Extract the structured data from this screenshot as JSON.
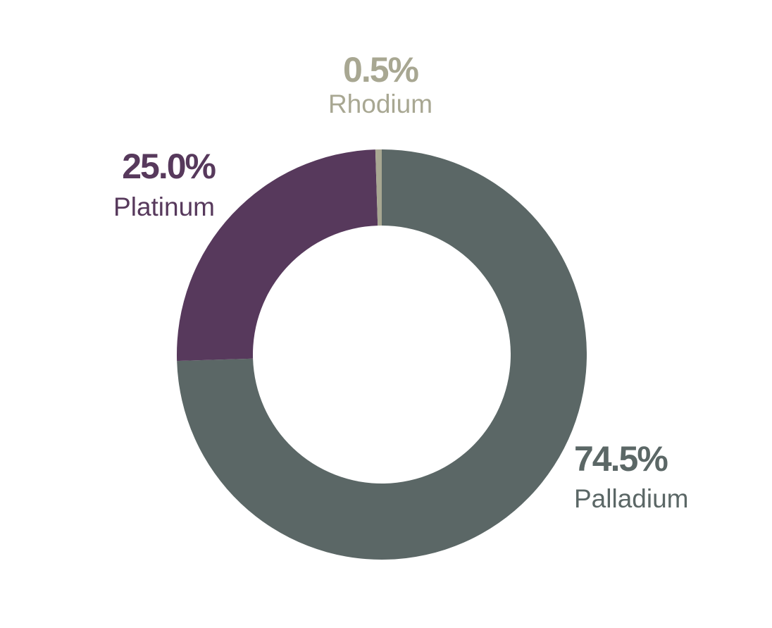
{
  "chart_data": {
    "type": "donut",
    "categories": [
      "Palladium",
      "Platinum",
      "Rhodium"
    ],
    "values": [
      74.5,
      25.0,
      0.5
    ],
    "value_labels": [
      "74.5%",
      "25.0%",
      "0.5%"
    ],
    "colors": [
      "#5b6766",
      "#57395c",
      "#a8a792"
    ]
  }
}
